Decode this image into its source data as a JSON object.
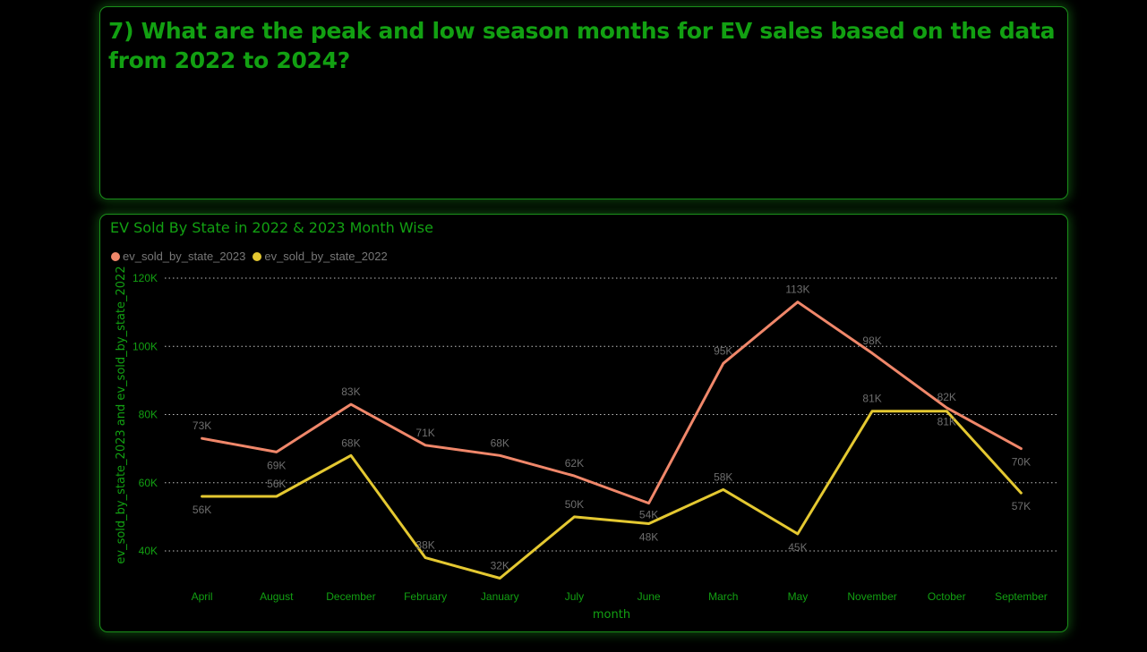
{
  "question": {
    "text": "7) What are the peak and low season months for EV sales based on the data from 2022 to 2024?"
  },
  "chart_data": {
    "type": "line",
    "title": "EV Sold By State in 2022 & 2023 Month Wise",
    "xlabel": "month",
    "ylabel": "ev_sold_by_state_2023 and ev_sold_by_state_2022",
    "categories": [
      "April",
      "August",
      "December",
      "February",
      "January",
      "July",
      "June",
      "March",
      "May",
      "November",
      "October",
      "September"
    ],
    "yticks": [
      40000,
      60000,
      80000,
      100000,
      120000
    ],
    "ytick_labels": [
      "40K",
      "60K",
      "80K",
      "100K",
      "120K"
    ],
    "ylim": [
      32000,
      120000
    ],
    "grid": true,
    "legend_position": "top-left",
    "series": [
      {
        "name": "ev_sold_by_state_2023",
        "color": "#F0876A",
        "values": [
          73000,
          69000,
          83000,
          71000,
          68000,
          62000,
          54000,
          95000,
          113000,
          98000,
          82000,
          70000
        ],
        "labels": [
          "73K",
          "69K",
          "83K",
          "71K",
          "68K",
          "62K",
          "54K",
          "95K",
          "113K",
          "98K",
          "82K",
          "70K"
        ]
      },
      {
        "name": "ev_sold_by_state_2022",
        "color": "#E4C831",
        "values": [
          56000,
          56000,
          68000,
          38000,
          32000,
          50000,
          48000,
          58000,
          45000,
          81000,
          81000,
          57000
        ],
        "labels": [
          "56K",
          "56K",
          "68K",
          "38K",
          "32K",
          "50K",
          "48K",
          "58K",
          "45K",
          "81K",
          "81K",
          "57K"
        ]
      }
    ]
  }
}
